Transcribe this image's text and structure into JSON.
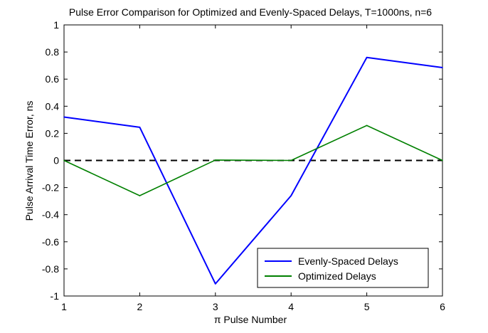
{
  "chart_data": {
    "type": "line",
    "title": "Pulse Error Comparison for Optimized and Evenly-Spaced Delays, T=1000ns, n=6",
    "xlabel": "π Pulse Number",
    "ylabel": "Pulse Arrival Time Error, ns",
    "x": [
      1,
      2,
      3,
      4,
      5,
      6
    ],
    "xlim": [
      1,
      6
    ],
    "ylim": [
      -1,
      1
    ],
    "xticks": [
      "1",
      "2",
      "3",
      "4",
      "5",
      "6"
    ],
    "yticks": [
      "-1",
      "-0.8",
      "-0.6",
      "-0.4",
      "-0.2",
      "0",
      "0.2",
      "0.4",
      "0.6",
      "0.8",
      "1"
    ],
    "grid": false,
    "legend_position": "bottom-right",
    "reference_line": {
      "y": 0,
      "style": "dashed",
      "color": "#000000"
    },
    "series": [
      {
        "name": "Evenly-Spaced Delays",
        "color": "#0000ff",
        "values": [
          0.32,
          0.245,
          -0.91,
          -0.26,
          0.76,
          0.685
        ]
      },
      {
        "name": "Optimized Delays",
        "color": "#008000",
        "values": [
          0.0,
          -0.26,
          0.003,
          0.0,
          0.258,
          0.0
        ]
      }
    ]
  }
}
